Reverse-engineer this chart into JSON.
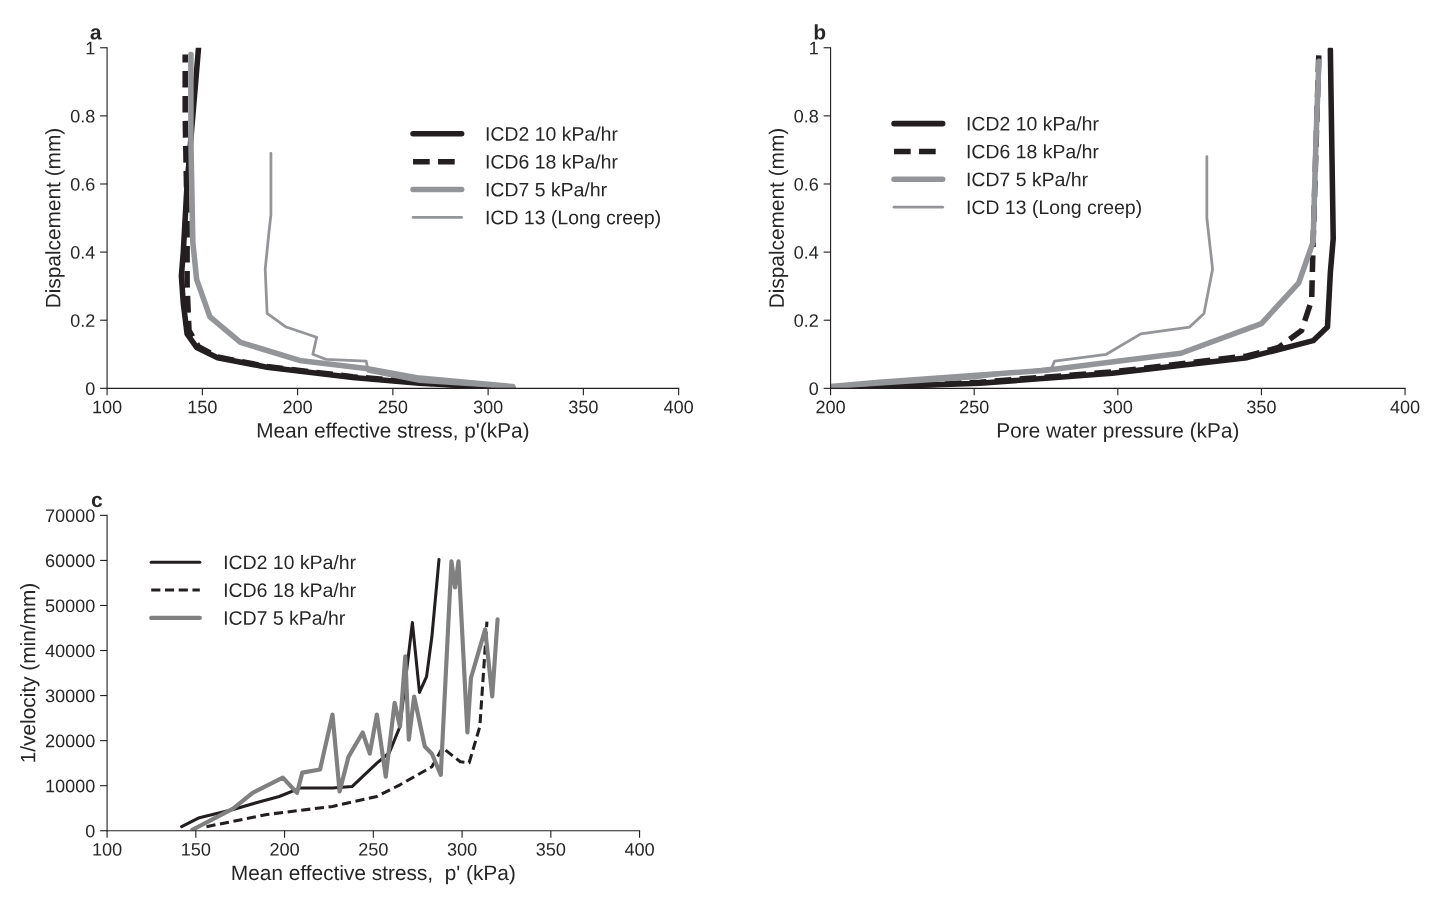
{
  "chart_data": [
    {
      "type": "line",
      "title": "a",
      "xlabel": "Mean effective stress, p'(kPa)",
      "ylabel": "Dispalcement (mm)",
      "xlim": [
        100,
        400
      ],
      "xticks": [
        100,
        150,
        200,
        250,
        300,
        350,
        400
      ],
      "ylim": [
        0,
        1
      ],
      "yticks": [
        0,
        0.2,
        0.4,
        0.6,
        0.8,
        1
      ],
      "legend": "top right",
      "marker": "none",
      "series": [
        {
          "name": "ICD2 10 kPa/hr",
          "color": "#231f20",
          "line_style": "solid",
          "x": [
            313,
            264,
            229,
            184,
            158,
            147,
            142,
            140,
            139,
            140,
            142,
            145,
            148
          ],
          "values": [
            0,
            0.015,
            0.032,
            0.062,
            0.09,
            0.12,
            0.16,
            0.25,
            0.33,
            0.4,
            0.6,
            0.8,
            1.0
          ]
        },
        {
          "name": "ICD6 18 kPa/hr",
          "color": "#231f20",
          "line_style": "dashed",
          "x": [
            310,
            264,
            229,
            184,
            158,
            148,
            143,
            142,
            142,
            141,
            141
          ],
          "values": [
            0,
            0.017,
            0.034,
            0.064,
            0.092,
            0.122,
            0.17,
            0.3,
            0.5,
            0.8,
            0.98
          ]
        },
        {
          "name": "ICD7 5 kPa/hr",
          "color": "#939598",
          "line_style": "solid",
          "x": [
            313,
            264,
            236,
            201,
            170,
            154,
            147,
            145,
            144,
            144
          ],
          "values": [
            0.005,
            0.03,
            0.058,
            0.082,
            0.135,
            0.21,
            0.32,
            0.43,
            0.73,
            0.98
          ]
        },
        {
          "name": "ICD 13 (Long creep)",
          "color": "#939598",
          "line_style": "solid",
          "x": [
            305,
            264,
            237,
            236,
            215,
            208,
            210,
            194,
            184,
            183,
            185,
            186,
            186
          ],
          "values": [
            0.005,
            0.02,
            0.05,
            0.08,
            0.085,
            0.1,
            0.15,
            0.18,
            0.22,
            0.35,
            0.46,
            0.51,
            0.69
          ]
        }
      ]
    },
    {
      "type": "line",
      "title": "b",
      "xlabel": "Pore water pressure (kPa)",
      "ylabel": "Dispalcement (mm)",
      "xlim": [
        200,
        400
      ],
      "xticks": [
        200,
        250,
        300,
        350,
        400
      ],
      "ylim": [
        0,
        1
      ],
      "yticks": [
        0,
        0.2,
        0.4,
        0.6,
        0.8,
        1
      ],
      "legend": "top left",
      "marker": "none",
      "series": [
        {
          "name": "ICD2 10 kPa/hr",
          "color": "#231f20",
          "line_style": "solid",
          "x": [
            200,
            252,
            298,
            345,
            368,
            373,
            374,
            375,
            374
          ],
          "values": [
            0,
            0.015,
            0.044,
            0.09,
            0.14,
            0.18,
            0.34,
            0.44,
            0.995
          ]
        },
        {
          "name": "ICD6 18 kPa/hr",
          "color": "#231f20",
          "line_style": "dashed",
          "x": [
            205,
            252,
            298,
            345,
            356,
            364,
            367.5,
            368,
            370
          ],
          "values": [
            0,
            0.018,
            0.048,
            0.095,
            0.12,
            0.17,
            0.26,
            0.43,
            0.985
          ]
        },
        {
          "name": "ICD7 5 kPa/hr",
          "color": "#939598",
          "line_style": "solid",
          "x": [
            200,
            217,
            275,
            322,
            350,
            363,
            368,
            369,
            370
          ],
          "values": [
            0.005,
            0.018,
            0.053,
            0.103,
            0.19,
            0.31,
            0.43,
            0.73,
            0.96
          ]
        },
        {
          "name": "ICD 13 (Long creep)",
          "color": "#939598",
          "line_style": "solid",
          "x": [
            205,
            250,
            277,
            278,
            296,
            308,
            325,
            330,
            333,
            331,
            331
          ],
          "values": [
            0.005,
            0.03,
            0.06,
            0.08,
            0.1,
            0.16,
            0.18,
            0.22,
            0.35,
            0.5,
            0.68
          ]
        }
      ]
    },
    {
      "type": "line",
      "title": "c",
      "xlabel": "Mean effective stress,  p' (kPa)",
      "ylabel": "1/velocity (min/mm)",
      "xlim": [
        100,
        400
      ],
      "xticks": [
        100,
        150,
        200,
        250,
        300,
        350,
        400
      ],
      "ylim": [
        0,
        70000
      ],
      "yticks": [
        0,
        10000,
        20000,
        30000,
        40000,
        50000,
        60000,
        70000
      ],
      "legend": "top left",
      "marker": "none",
      "series": [
        {
          "name": "ICD2 10 kPa/hr",
          "color": "#231f20",
          "line_style": "solid",
          "x": [
            142,
            152,
            171,
            184,
            197,
            209,
            227,
            238,
            252,
            259,
            265,
            272,
            276,
            280,
            283,
            287
          ],
          "values": [
            900,
            2900,
            4700,
            6200,
            7600,
            9500,
            9500,
            9800,
            15000,
            17300,
            23100,
            46200,
            30700,
            34200,
            43100,
            60200
          ]
        },
        {
          "name": "ICD6 18 kPa/hr",
          "color": "#231f20",
          "line_style": "dashed",
          "x": [
            156,
            190,
            227,
            252,
            265,
            283,
            289,
            299,
            304,
            310,
            314
          ],
          "values": [
            900,
            3600,
            5400,
            7600,
            10200,
            14200,
            18400,
            15300,
            15100,
            23100,
            46400
          ]
        },
        {
          "name": "ICD7 5 kPa/hr",
          "color": "#808080",
          "line_style": "solid",
          "x": [
            148,
            171,
            182,
            199,
            207,
            210,
            220,
            227,
            231,
            236,
            244,
            248,
            252,
            257,
            262,
            265,
            268,
            270,
            273,
            279,
            283,
            288,
            294,
            296,
            298,
            303,
            305,
            313,
            317,
            320
          ],
          "values": [
            200,
            4900,
            8400,
            11800,
            8400,
            12900,
            13600,
            25800,
            8700,
            16400,
            21800,
            17100,
            25800,
            12000,
            28400,
            23100,
            38700,
            20200,
            29800,
            18700,
            17100,
            12400,
            59800,
            54000,
            59800,
            21800,
            33900,
            44700,
            29800,
            46900
          ]
        }
      ]
    }
  ]
}
